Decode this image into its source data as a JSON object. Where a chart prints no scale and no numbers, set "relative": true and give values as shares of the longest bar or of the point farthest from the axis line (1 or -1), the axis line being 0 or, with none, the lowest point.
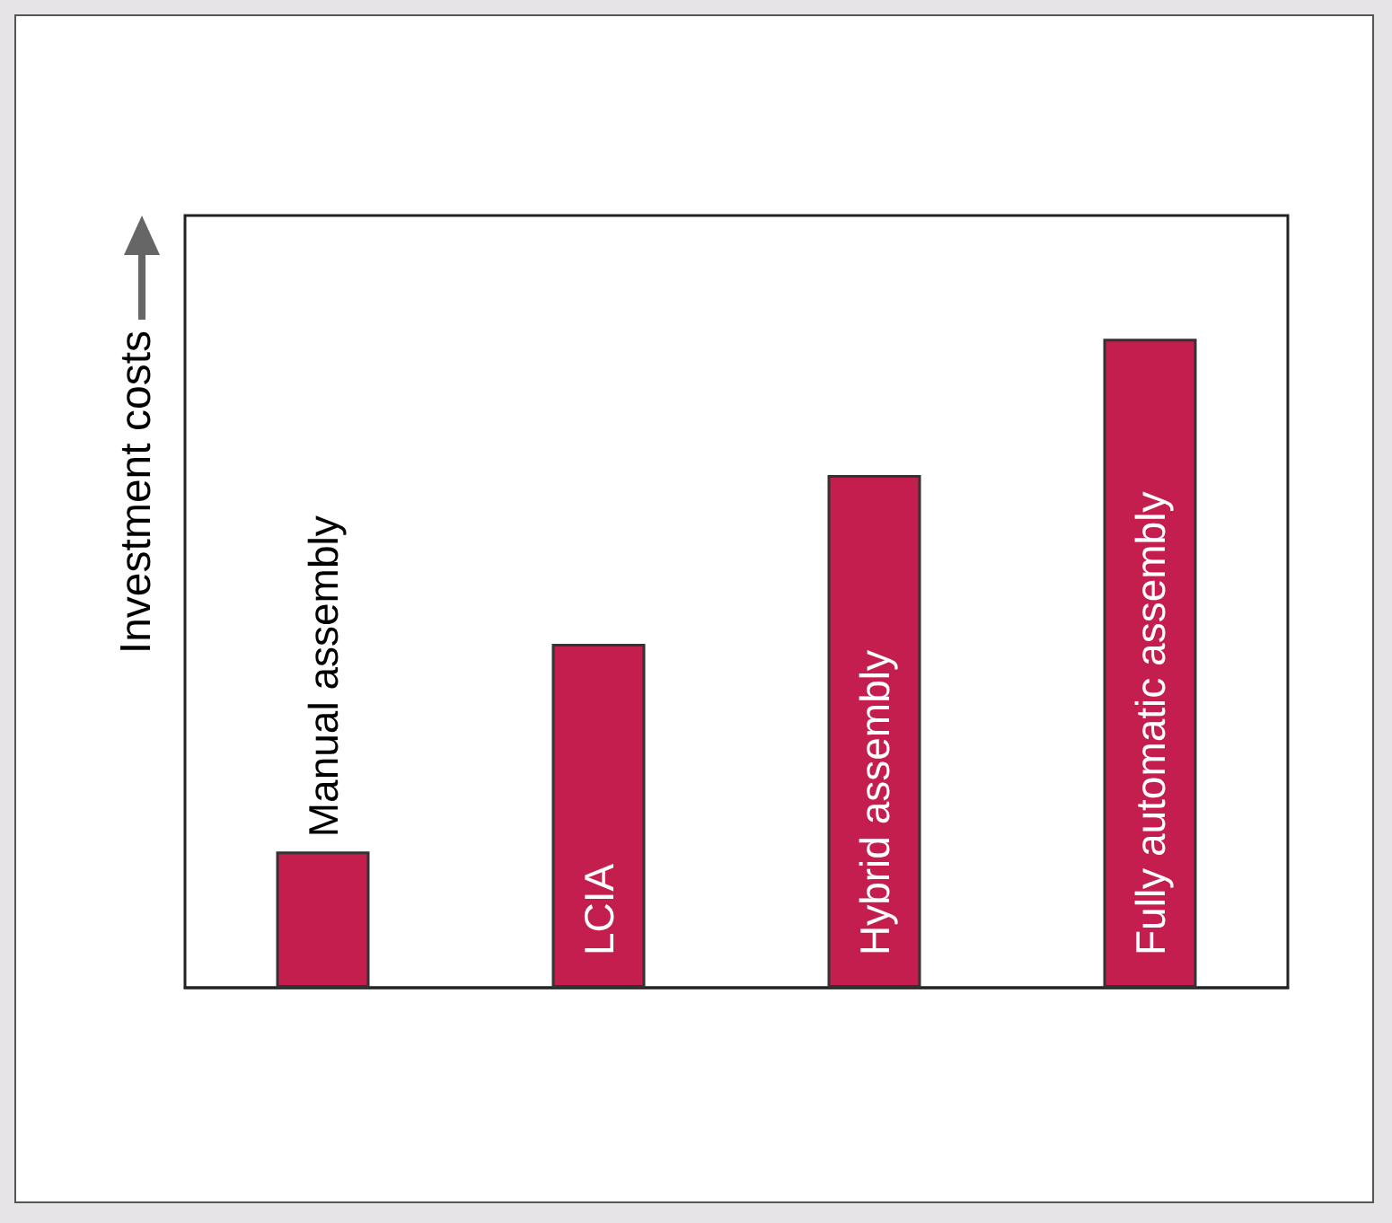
{
  "chart_data": {
    "type": "bar",
    "relative": true,
    "ylabel": "Investment costs",
    "categories": [
      "Manual assembly",
      "LCIA",
      "Hybrid assembly",
      "Fully automatic assembly"
    ],
    "values": [
      0.21,
      0.53,
      0.79,
      1
    ],
    "color": "#c41e4e"
  }
}
